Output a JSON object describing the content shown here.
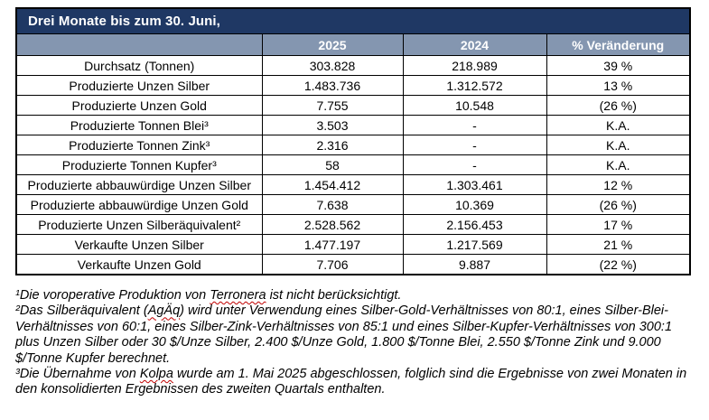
{
  "table": {
    "title": "Drei Monate bis zum 30. Juni,",
    "columns": [
      "",
      "2025",
      "2024",
      "% Veränderung"
    ],
    "rows": [
      {
        "label": "Durchsatz (Tonnen)",
        "v2025": "303.828",
        "v2024": "218.989",
        "change": "39 %"
      },
      {
        "label": "Produzierte Unzen Silber",
        "v2025": "1.483.736",
        "v2024": "1.312.572",
        "change": "13 %"
      },
      {
        "label": "Produzierte Unzen Gold",
        "v2025": "7.755",
        "v2024": "10.548",
        "change": "(26 %)"
      },
      {
        "label": "Produzierte Tonnen Blei³",
        "v2025": "3.503",
        "v2024": "-",
        "change": "K.A."
      },
      {
        "label": "Produzierte Tonnen Zink³",
        "v2025": "2.316",
        "v2024": "-",
        "change": "K.A."
      },
      {
        "label": "Produzierte Tonnen Kupfer³",
        "v2025": "58",
        "v2024": "-",
        "change": "K.A."
      },
      {
        "label": "Produzierte abbauwürdige Unzen Silber",
        "v2025": "1.454.412",
        "v2024": "1.303.461",
        "change": "12 %"
      },
      {
        "label": "Produzierte abbauwürdige Unzen Gold",
        "v2025": "7.638",
        "v2024": "10.369",
        "change": "(26 %)"
      },
      {
        "label": "Produzierte Unzen Silberäquivalent²",
        "v2025": "2.528.562",
        "v2024": "2.156.453",
        "change": "17 %"
      },
      {
        "label": "Verkaufte Unzen Silber",
        "v2025": "1.477.197",
        "v2024": "1.217.569",
        "change": "21 %"
      },
      {
        "label": "Verkaufte Unzen Gold",
        "v2025": "7.706",
        "v2024": "9.887",
        "change": "(22 %)"
      }
    ]
  },
  "footnotes": [
    {
      "segments": [
        {
          "text": "¹Die voroperative Produktion von "
        },
        {
          "text": "Terronera",
          "spellcheck": true
        },
        {
          "text": " ist nicht berücksichtigt."
        }
      ]
    },
    {
      "segments": [
        {
          "text": "²Das Silberäquivalent ("
        },
        {
          "text": "AgÄq",
          "spellcheck": true
        },
        {
          "text": ") wird unter Verwendung eines Silber-Gold-Verhältnisses von 80:1, eines Silber-Blei-Verhältnisses von 60:1, eines Silber-Zink-Verhältnisses von 85:1 und eines Silber-Kupfer-Verhältnisses von 300:1 plus Unzen Silber oder 30 $/Unze Silber, 2.400 $/Unze Gold, 1.800 $/Tonne Blei, 2.550 $/Tonne Zink und 9.000 $/Tonne Kupfer berechnet."
        }
      ]
    },
    {
      "segments": [
        {
          "text": "³Die Übernahme von "
        },
        {
          "text": "Kolpa",
          "spellcheck": true
        },
        {
          "text": " wurde am 1. Mai 2025 abgeschlossen, folglich sind die Ergebnisse von zwei Monaten in den konsolidierten Ergebnissen des zweiten Quartals enthalten."
        }
      ]
    }
  ],
  "colors": {
    "header_bg": "#1F3864",
    "subheader_bg": "#8496B0",
    "header_text": "#FFFFFF",
    "border": "#000000",
    "spellcheck_underline": "#C00000"
  }
}
